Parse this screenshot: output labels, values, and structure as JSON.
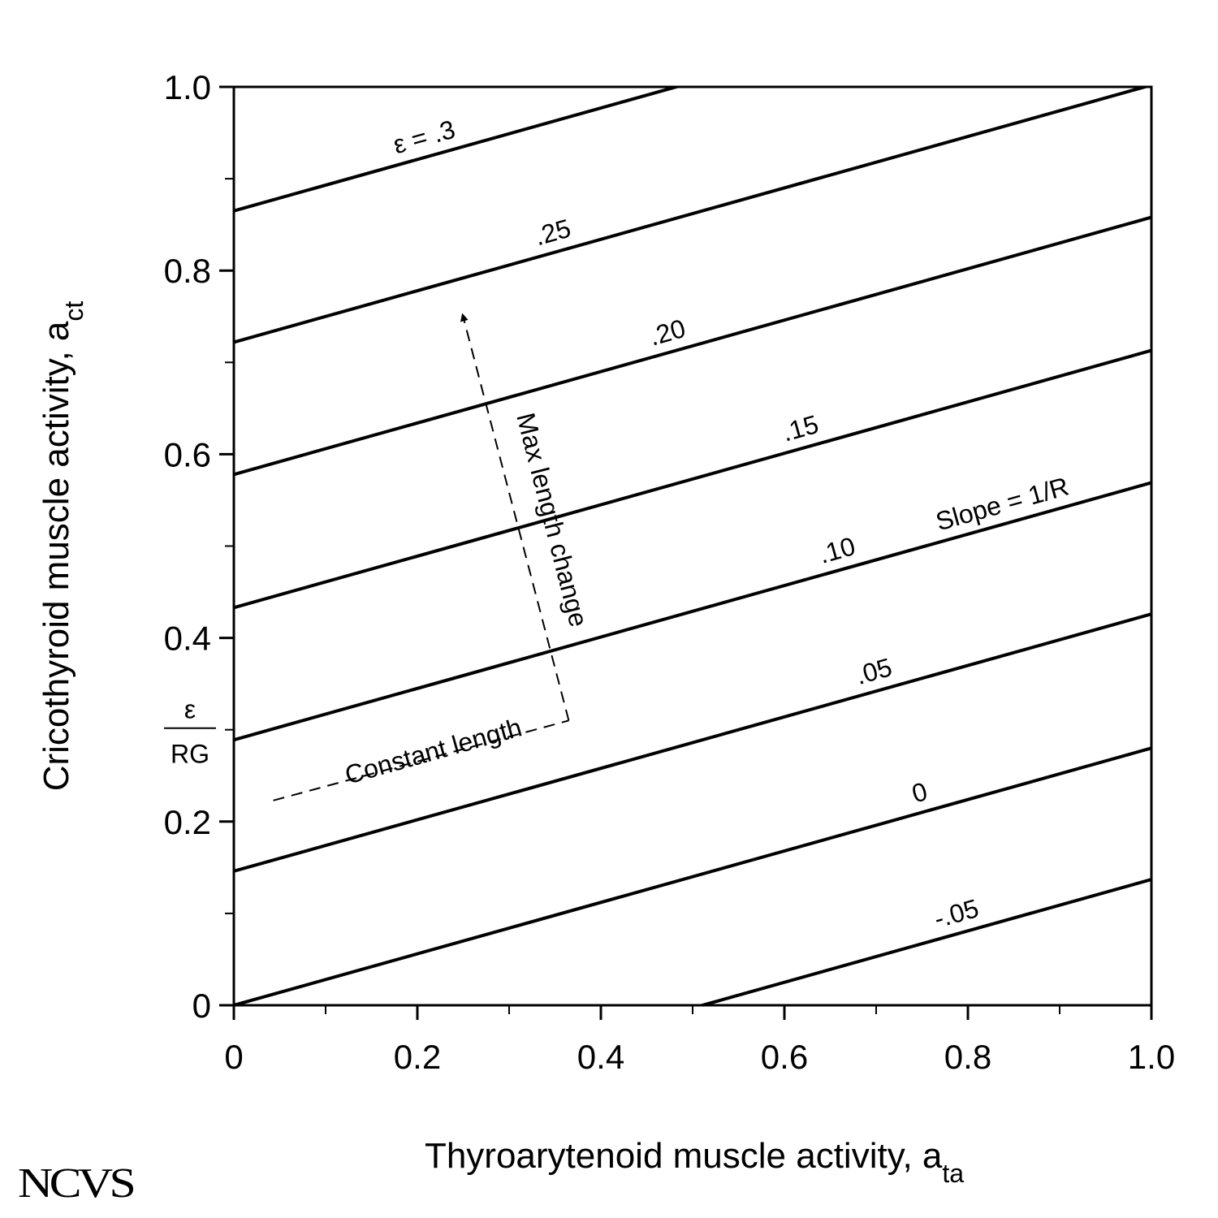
{
  "chart_data": {
    "type": "line",
    "xlabel": "Thyroarytenoid muscle activity, a",
    "xlabel_sub": "ta",
    "ylabel": "Cricothyroid muscle activity, a",
    "ylabel_sub": "ct",
    "xlim": [
      0,
      1.0
    ],
    "ylim": [
      0,
      1.0
    ],
    "x_ticks": [
      "0",
      "0.2",
      "0.4",
      "0.6",
      "0.8",
      "1.0"
    ],
    "y_ticks": [
      "0",
      "0.2",
      "0.4",
      "0.6",
      "0.8",
      "1.0"
    ],
    "y_special_tick": {
      "value": 0.3,
      "numerator": "ε",
      "denominator": "RG"
    },
    "slope": 0.28,
    "series": [
      {
        "label": ".3",
        "intercept": 0.865,
        "label_x": 0.21
      },
      {
        "label": ".25",
        "intercept": 0.722,
        "label_x": 0.35
      },
      {
        "label": ".20",
        "intercept": 0.578,
        "label_x": 0.475
      },
      {
        "label": ".15",
        "intercept": 0.433,
        "label_x": 0.62
      },
      {
        "label": ".10",
        "intercept": 0.289,
        "label_x": 0.66
      },
      {
        "label": ".05",
        "intercept": 0.146,
        "label_x": 0.7
      },
      {
        "label": "0",
        "intercept": 0.0,
        "label_x": 0.75
      },
      {
        "label": "-.05",
        "intercept": -0.143,
        "label_x": 0.79
      }
    ],
    "annotations": {
      "first_line_prefix": "ε = ",
      "slope_label": "Slope = 1/R",
      "constant_length": "Constant length",
      "max_length_change": "Max length change",
      "constant_length_path": {
        "from": [
          0.043,
          0.223
        ],
        "to": [
          0.365,
          0.31
        ]
      },
      "max_length_path": {
        "from": [
          0.365,
          0.31
        ],
        "to": [
          0.25,
          0.76
        ]
      }
    }
  },
  "logo_text": "NCVS"
}
